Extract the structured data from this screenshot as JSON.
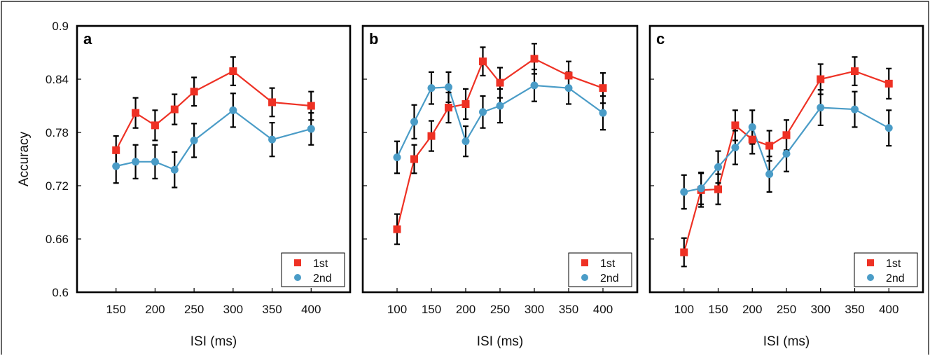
{
  "chart_data": [
    {
      "type": "line",
      "panel_label": "a",
      "xlabel": "ISI (ms)",
      "ylabel": "Accuracy",
      "x": [
        150,
        175,
        200,
        225,
        250,
        300,
        350,
        400
      ],
      "xticks": [
        150,
        200,
        250,
        300,
        350,
        400
      ],
      "ylim": [
        0.6,
        0.9
      ],
      "yticks": [
        "0.6",
        "0.66",
        "0.72",
        "0.78",
        "0.84",
        "0.9"
      ],
      "legend_position": "bottom-right",
      "series": [
        {
          "name": "1st",
          "color": "#ee3124",
          "marker": "square",
          "values": [
            0.76,
            0.802,
            0.788,
            0.806,
            0.826,
            0.849,
            0.814,
            0.81
          ],
          "errors": [
            0.016,
            0.017,
            0.017,
            0.017,
            0.016,
            0.016,
            0.016,
            0.016
          ]
        },
        {
          "name": "2nd",
          "color": "#4a9cc7",
          "marker": "circle",
          "values": [
            0.742,
            0.747,
            0.747,
            0.738,
            0.771,
            0.805,
            0.772,
            0.784
          ],
          "errors": [
            0.019,
            0.019,
            0.019,
            0.02,
            0.019,
            0.019,
            0.019,
            0.018
          ]
        }
      ]
    },
    {
      "type": "line",
      "panel_label": "b",
      "xlabel": "ISI (ms)",
      "ylabel": "",
      "x": [
        100,
        125,
        150,
        175,
        200,
        225,
        250,
        300,
        350,
        400
      ],
      "xticks": [
        100,
        150,
        200,
        250,
        300,
        350,
        400
      ],
      "ylim": [
        0.6,
        0.9
      ],
      "legend_position": "bottom-right",
      "series": [
        {
          "name": "1st",
          "color": "#ee3124",
          "marker": "square",
          "values": [
            0.671,
            0.75,
            0.776,
            0.808,
            0.812,
            0.86,
            0.836,
            0.863,
            0.844,
            0.83
          ],
          "errors": [
            0.017,
            0.016,
            0.017,
            0.017,
            0.017,
            0.016,
            0.017,
            0.017,
            0.016,
            0.017
          ]
        },
        {
          "name": "2nd",
          "color": "#4a9cc7",
          "marker": "circle",
          "values": [
            0.752,
            0.792,
            0.83,
            0.831,
            0.77,
            0.803,
            0.81,
            0.833,
            0.83,
            0.802
          ],
          "errors": [
            0.018,
            0.019,
            0.018,
            0.017,
            0.017,
            0.018,
            0.019,
            0.018,
            0.018,
            0.019
          ]
        }
      ]
    },
    {
      "type": "line",
      "panel_label": "c",
      "xlabel": "ISI (ms)",
      "ylabel": "",
      "x": [
        100,
        125,
        150,
        175,
        200,
        225,
        250,
        300,
        350,
        400
      ],
      "xticks": [
        100,
        150,
        200,
        250,
        300,
        350,
        400
      ],
      "ylim": [
        0.6,
        0.9
      ],
      "legend_position": "bottom-right",
      "series": [
        {
          "name": "1st",
          "color": "#ee3124",
          "marker": "square",
          "values": [
            0.645,
            0.715,
            0.716,
            0.788,
            0.772,
            0.765,
            0.777,
            0.84,
            0.849,
            0.835
          ],
          "errors": [
            0.016,
            0.019,
            0.017,
            0.017,
            0.016,
            0.017,
            0.017,
            0.017,
            0.016,
            0.017
          ]
        },
        {
          "name": "2nd",
          "color": "#4a9cc7",
          "marker": "circle",
          "values": [
            0.713,
            0.717,
            0.741,
            0.763,
            0.786,
            0.733,
            0.756,
            0.808,
            0.806,
            0.785
          ],
          "errors": [
            0.019,
            0.018,
            0.018,
            0.019,
            0.019,
            0.02,
            0.02,
            0.02,
            0.02,
            0.02
          ]
        }
      ]
    }
  ]
}
